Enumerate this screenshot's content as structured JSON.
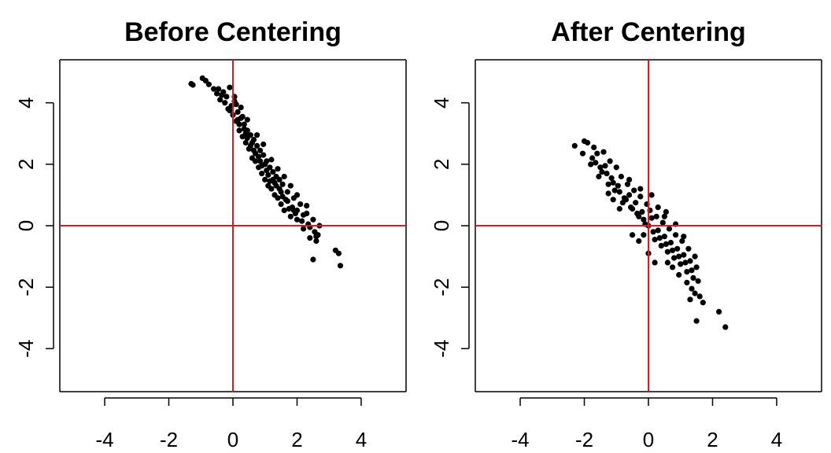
{
  "chart_data": [
    {
      "type": "scatter",
      "title": "Before Centering",
      "xlabel": "",
      "ylabel": "",
      "xlim": [
        -5.4,
        5.4
      ],
      "ylim": [
        -5.4,
        5.4
      ],
      "xticks": [
        -4,
        -2,
        0,
        2,
        4
      ],
      "yticks": [
        -4,
        -2,
        0,
        2,
        4
      ],
      "xtick_labels": [
        "-4",
        "-2",
        "0",
        "2",
        "4"
      ],
      "ytick_labels": [
        "-4",
        "-2",
        "0",
        "2",
        "4"
      ],
      "reference_lines": {
        "x": 0,
        "y": 0,
        "color": "#e8141c"
      },
      "point_color": "#000000",
      "grid": false,
      "points": [
        [
          -1.3,
          4.62
        ],
        [
          -1.25,
          4.58
        ],
        [
          -0.95,
          4.8
        ],
        [
          -0.85,
          4.72
        ],
        [
          -0.6,
          4.45
        ],
        [
          -0.5,
          4.3
        ],
        [
          -0.45,
          4.45
        ],
        [
          -0.4,
          4.1
        ],
        [
          -0.3,
          4.35
        ],
        [
          -0.25,
          4.0
        ],
        [
          -0.2,
          4.2
        ],
        [
          -0.15,
          3.8
        ],
        [
          -0.1,
          4.5
        ],
        [
          -0.05,
          3.9
        ],
        [
          0.0,
          3.6
        ],
        [
          0.05,
          4.2
        ],
        [
          0.1,
          3.4
        ],
        [
          0.15,
          3.7
        ],
        [
          0.2,
          3.1
        ],
        [
          0.25,
          3.5
        ],
        [
          0.3,
          2.9
        ],
        [
          0.35,
          3.3
        ],
        [
          0.4,
          2.7
        ],
        [
          0.45,
          3.1
        ],
        [
          0.5,
          2.5
        ],
        [
          0.55,
          2.95
        ],
        [
          0.6,
          2.2
        ],
        [
          0.65,
          2.8
        ],
        [
          0.7,
          2.1
        ],
        [
          0.75,
          2.6
        ],
        [
          0.8,
          1.9
        ],
        [
          0.85,
          2.45
        ],
        [
          0.9,
          1.7
        ],
        [
          0.95,
          2.3
        ],
        [
          1.0,
          1.5
        ],
        [
          1.05,
          2.1
        ],
        [
          1.1,
          1.3
        ],
        [
          1.15,
          1.9
        ],
        [
          1.2,
          1.2
        ],
        [
          1.25,
          1.75
        ],
        [
          1.3,
          1.0
        ],
        [
          1.35,
          1.6
        ],
        [
          1.4,
          0.9
        ],
        [
          1.45,
          1.5
        ],
        [
          1.5,
          0.7
        ],
        [
          1.55,
          1.35
        ],
        [
          1.6,
          0.5
        ],
        [
          1.7,
          1.1
        ],
        [
          1.8,
          0.3
        ],
        [
          1.9,
          0.9
        ],
        [
          2.0,
          0.2
        ],
        [
          2.1,
          0.7
        ],
        [
          2.2,
          -0.1
        ],
        [
          2.3,
          0.4
        ],
        [
          2.4,
          -0.4
        ],
        [
          2.5,
          0.2
        ],
        [
          2.6,
          -0.5
        ],
        [
          2.7,
          0.0
        ],
        [
          3.2,
          -0.8
        ],
        [
          3.3,
          -0.9
        ],
        [
          3.35,
          -1.3
        ],
        [
          2.5,
          -1.1
        ],
        [
          -0.75,
          4.6
        ],
        [
          0.05,
          4.05
        ],
        [
          0.2,
          3.3
        ],
        [
          0.35,
          3.15
        ],
        [
          0.55,
          2.6
        ],
        [
          0.65,
          2.45
        ],
        [
          0.85,
          2.1
        ],
        [
          1.0,
          2.0
        ],
        [
          1.15,
          1.45
        ],
        [
          1.35,
          1.3
        ],
        [
          1.5,
          1.1
        ],
        [
          1.65,
          0.85
        ],
        [
          1.85,
          0.6
        ],
        [
          2.0,
          0.5
        ],
        [
          2.2,
          0.35
        ],
        [
          2.35,
          0.05
        ],
        [
          2.55,
          -0.2
        ],
        [
          2.65,
          -0.3
        ],
        [
          0.1,
          3.95
        ],
        [
          0.3,
          3.55
        ],
        [
          0.45,
          2.85
        ],
        [
          0.7,
          2.35
        ],
        [
          0.9,
          1.95
        ],
        [
          1.1,
          1.65
        ],
        [
          1.3,
          1.4
        ],
        [
          1.55,
          0.95
        ],
        [
          1.75,
          0.55
        ],
        [
          1.95,
          0.4
        ],
        [
          -0.35,
          4.25
        ],
        [
          -0.1,
          3.75
        ],
        [
          0.15,
          3.45
        ],
        [
          0.4,
          3.0
        ],
        [
          0.6,
          2.7
        ],
        [
          0.8,
          2.25
        ],
        [
          1.05,
          1.8
        ],
        [
          1.25,
          1.5
        ],
        [
          1.45,
          1.2
        ],
        [
          1.7,
          0.8
        ],
        [
          1.9,
          0.5
        ],
        [
          2.15,
          0.15
        ],
        [
          2.4,
          -0.05
        ],
        [
          2.6,
          -0.35
        ],
        [
          1.6,
          1.6
        ],
        [
          1.8,
          1.3
        ],
        [
          2.0,
          1.0
        ],
        [
          2.3,
          0.65
        ],
        [
          0.95,
          2.65
        ],
        [
          0.75,
          2.95
        ],
        [
          1.2,
          2.15
        ],
        [
          0.45,
          3.45
        ],
        [
          0.25,
          3.85
        ],
        [
          1.4,
          1.85
        ]
      ]
    },
    {
      "type": "scatter",
      "title": "After Centering",
      "xlabel": "",
      "ylabel": "",
      "xlim": [
        -5.4,
        5.4
      ],
      "ylim": [
        -5.4,
        5.4
      ],
      "xticks": [
        -4,
        -2,
        0,
        2,
        4
      ],
      "yticks": [
        -4,
        -2,
        0,
        2,
        4
      ],
      "xtick_labels": [
        "-4",
        "-2",
        "0",
        "2",
        "4"
      ],
      "ytick_labels": [
        "-4",
        "-2",
        "0",
        "2",
        "4"
      ],
      "reference_lines": {
        "x": 0,
        "y": 0,
        "color": "#e8141c"
      },
      "point_color": "#000000",
      "grid": false,
      "points": [
        [
          -2.3,
          2.6
        ],
        [
          -2.0,
          2.75
        ],
        [
          -1.9,
          2.7
        ],
        [
          -1.75,
          2.2
        ],
        [
          -1.6,
          2.35
        ],
        [
          -1.5,
          1.9
        ],
        [
          -1.4,
          2.4
        ],
        [
          -1.3,
          1.7
        ],
        [
          -1.2,
          2.1
        ],
        [
          -1.1,
          1.4
        ],
        [
          -1.0,
          1.9
        ],
        [
          -0.9,
          1.1
        ],
        [
          -0.85,
          1.6
        ],
        [
          -0.75,
          0.9
        ],
        [
          -0.65,
          1.35
        ],
        [
          -0.55,
          0.6
        ],
        [
          -0.45,
          1.15
        ],
        [
          -0.35,
          0.4
        ],
        [
          -0.25,
          0.95
        ],
        [
          -0.15,
          0.2
        ],
        [
          -0.05,
          0.7
        ],
        [
          0.0,
          0.0
        ],
        [
          0.05,
          0.5
        ],
        [
          0.15,
          -0.2
        ],
        [
          0.25,
          0.3
        ],
        [
          0.35,
          -0.4
        ],
        [
          0.45,
          0.1
        ],
        [
          0.55,
          -0.6
        ],
        [
          0.65,
          -0.1
        ],
        [
          0.75,
          -0.8
        ],
        [
          0.85,
          -0.3
        ],
        [
          0.95,
          -1.0
        ],
        [
          1.05,
          -0.5
        ],
        [
          1.15,
          -1.2
        ],
        [
          1.25,
          -0.75
        ],
        [
          1.35,
          -1.45
        ],
        [
          1.45,
          -1.0
        ],
        [
          1.55,
          -1.8
        ],
        [
          1.6,
          -2.3
        ],
        [
          1.45,
          -2.2
        ],
        [
          1.3,
          -2.4
        ],
        [
          1.5,
          -3.1
        ],
        [
          2.2,
          -2.8
        ],
        [
          2.4,
          -3.3
        ],
        [
          1.7,
          -2.5
        ],
        [
          -1.8,
          2.0
        ],
        [
          -1.55,
          1.6
        ],
        [
          -1.35,
          1.95
        ],
        [
          -1.15,
          1.55
        ],
        [
          -0.95,
          1.3
        ],
        [
          -0.8,
          0.75
        ],
        [
          -0.6,
          1.0
        ],
        [
          -0.4,
          0.75
        ],
        [
          -0.2,
          0.45
        ],
        [
          0.1,
          0.25
        ],
        [
          0.3,
          -0.15
        ],
        [
          0.5,
          -0.35
        ],
        [
          0.7,
          -0.55
        ],
        [
          0.9,
          -0.75
        ],
        [
          1.1,
          -0.95
        ],
        [
          1.3,
          -1.15
        ],
        [
          1.5,
          -1.35
        ],
        [
          -1.65,
          2.05
        ],
        [
          -1.45,
          1.75
        ],
        [
          -1.25,
          1.35
        ],
        [
          -1.05,
          1.15
        ],
        [
          -0.7,
          0.85
        ],
        [
          -0.5,
          0.55
        ],
        [
          -0.3,
          0.3
        ],
        [
          -0.1,
          0.05
        ],
        [
          0.2,
          -0.45
        ],
        [
          0.4,
          -0.65
        ],
        [
          0.6,
          -0.85
        ],
        [
          0.8,
          -1.05
        ],
        [
          1.0,
          -1.25
        ],
        [
          1.2,
          -1.5
        ],
        [
          1.4,
          -1.7
        ],
        [
          0.1,
          1.0
        ],
        [
          0.3,
          0.6
        ],
        [
          0.5,
          0.3
        ],
        [
          -0.5,
          -0.3
        ],
        [
          -0.3,
          -0.5
        ],
        [
          0.0,
          -0.9
        ],
        [
          0.2,
          -1.2
        ],
        [
          -0.9,
          0.55
        ],
        [
          -1.1,
          0.85
        ],
        [
          0.75,
          -1.35
        ],
        [
          0.95,
          -1.6
        ],
        [
          1.2,
          -1.85
        ],
        [
          -0.25,
          1.2
        ],
        [
          -0.6,
          1.5
        ],
        [
          -2.05,
          2.35
        ],
        [
          -1.7,
          2.55
        ],
        [
          0.55,
          0.45
        ],
        [
          0.85,
          0.05
        ],
        [
          1.1,
          -0.35
        ],
        [
          -0.15,
          -0.3
        ],
        [
          0.6,
          -1.2
        ],
        [
          1.35,
          -2.05
        ],
        [
          -1.25,
          1.05
        ]
      ]
    }
  ]
}
